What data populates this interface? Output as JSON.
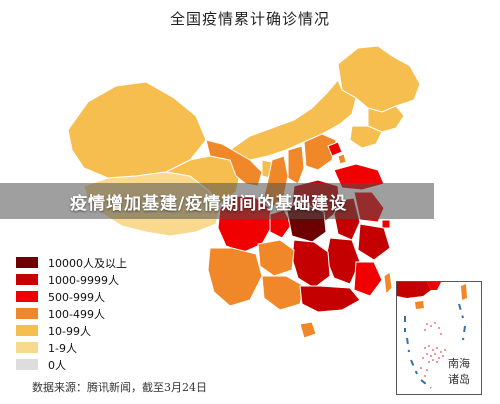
{
  "title": "全国疫情累计确诊情况",
  "banner": "疫情增加基建/疫情期间的基础建设",
  "legend": [
    {
      "label": "10000人及以上",
      "color": "#6d0000"
    },
    {
      "label": "1000-9999人",
      "color": "#c40000"
    },
    {
      "label": "500-999人",
      "color": "#f00000"
    },
    {
      "label": "100-499人",
      "color": "#f0882a"
    },
    {
      "label": "10-99人",
      "color": "#f5be4f"
    },
    {
      "label": "1-9人",
      "color": "#f9d98e"
    },
    {
      "label": "0人",
      "color": "#dddddd"
    }
  ],
  "source": "数据来源：腾讯新闻，截至3月24日",
  "inset": {
    "label_line1": "南海",
    "label_line2": "诸岛"
  },
  "map": {
    "ocean_color": "#ffffff",
    "border_color": "#ffffff",
    "island_dot_color": "#e05050",
    "dash_color": "#3a6fa0"
  }
}
